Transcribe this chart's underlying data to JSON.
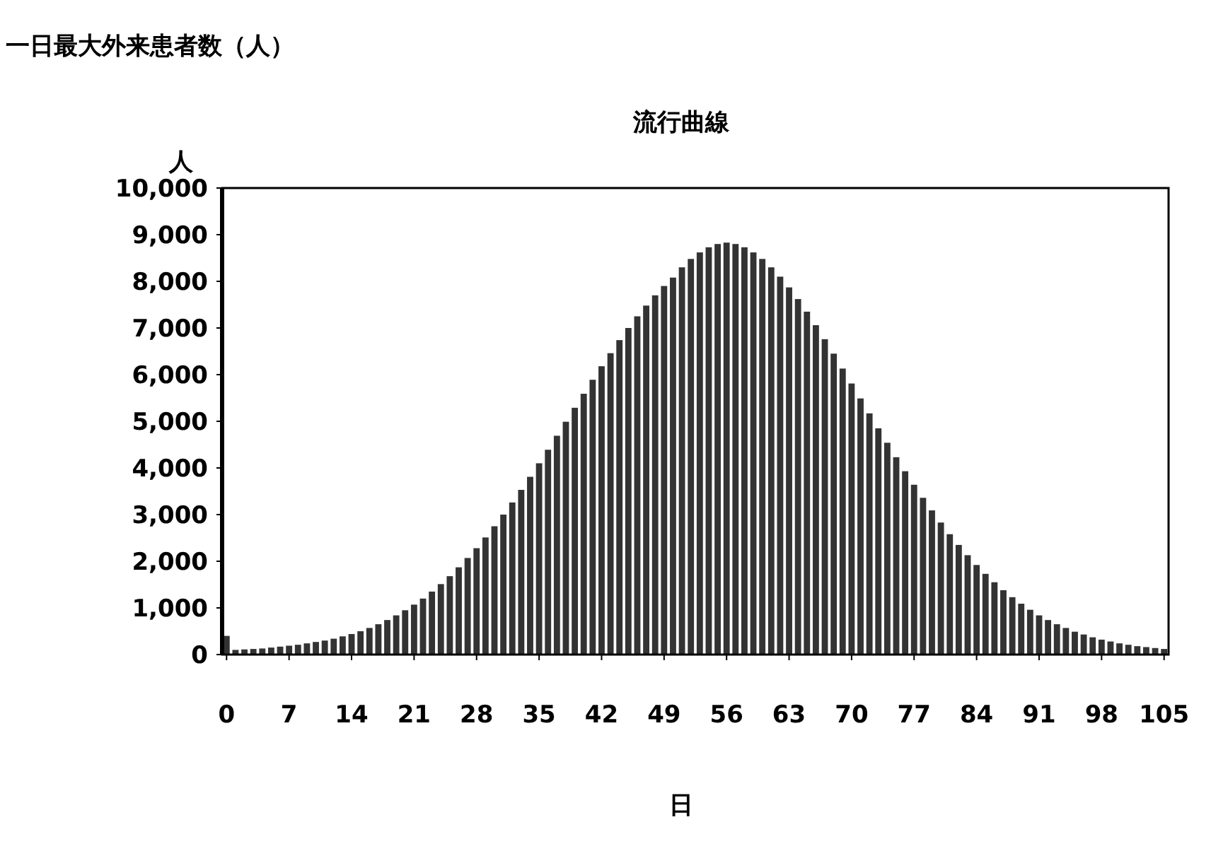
{
  "chart_data": {
    "type": "bar",
    "title": "流行曲線",
    "ylabel": "人",
    "xlabel": "日",
    "annotations": [
      "一日最大外来患者数（人）"
    ],
    "x": [
      0,
      1,
      2,
      3,
      4,
      5,
      6,
      7,
      8,
      9,
      10,
      11,
      12,
      13,
      14,
      15,
      16,
      17,
      18,
      19,
      20,
      21,
      22,
      23,
      24,
      25,
      26,
      27,
      28,
      29,
      30,
      31,
      32,
      33,
      34,
      35,
      36,
      37,
      38,
      39,
      40,
      41,
      42,
      43,
      44,
      45,
      46,
      47,
      48,
      49,
      50,
      51,
      52,
      53,
      54,
      55,
      56,
      57,
      58,
      59,
      60,
      61,
      62,
      63,
      64,
      65,
      66,
      67,
      68,
      69,
      70,
      71,
      72,
      73,
      74,
      75,
      76,
      77,
      78,
      79,
      80,
      81,
      82,
      83,
      84,
      85,
      86,
      87,
      88,
      89,
      90,
      91,
      92,
      93,
      94,
      95,
      96,
      97,
      98,
      99,
      100,
      101,
      102,
      103,
      104,
      105
    ],
    "values": [
      400,
      100,
      110,
      120,
      130,
      150,
      170,
      190,
      210,
      240,
      270,
      300,
      340,
      390,
      440,
      500,
      570,
      650,
      740,
      840,
      950,
      1070,
      1200,
      1350,
      1510,
      1680,
      1870,
      2070,
      2280,
      2510,
      2750,
      3000,
      3260,
      3530,
      3810,
      4100,
      4390,
      4690,
      4990,
      5290,
      5590,
      5890,
      6180,
      6460,
      6740,
      7000,
      7250,
      7480,
      7700,
      7900,
      8080,
      8300,
      8480,
      8620,
      8730,
      8800,
      8830,
      8800,
      8730,
      8620,
      8480,
      8300,
      8100,
      7870,
      7620,
      7350,
      7060,
      6760,
      6450,
      6130,
      5810,
      5490,
      5170,
      4850,
      4540,
      4230,
      3930,
      3640,
      3360,
      3090,
      2830,
      2580,
      2350,
      2130,
      1920,
      1730,
      1550,
      1380,
      1230,
      1090,
      960,
      840,
      740,
      650,
      570,
      490,
      430,
      370,
      320,
      280,
      240,
      210,
      180,
      160,
      140,
      120
    ],
    "color": "#333333",
    "xlim": [
      -0.5,
      105.5
    ],
    "xticks": [
      0,
      7,
      14,
      21,
      28,
      35,
      42,
      49,
      56,
      63,
      70,
      77,
      84,
      91,
      98,
      105
    ],
    "ylim": [
      0,
      10000
    ],
    "yticks": [
      0,
      {
        "value": 1000,
        "label": "1,000"
      },
      {
        "value": 2000,
        "label": "2,000"
      },
      {
        "value": 3000,
        "label": "3,000"
      },
      {
        "value": 4000,
        "label": "4,000"
      },
      {
        "value": 5000,
        "label": "5,000"
      },
      {
        "value": 6000,
        "label": "6,000"
      },
      {
        "value": 7000,
        "label": "7,000"
      },
      {
        "value": 8000,
        "label": "8,000"
      },
      {
        "value": 9000,
        "label": "9,000"
      },
      {
        "value": 10000,
        "label": "10,000"
      }
    ],
    "grid": false
  }
}
